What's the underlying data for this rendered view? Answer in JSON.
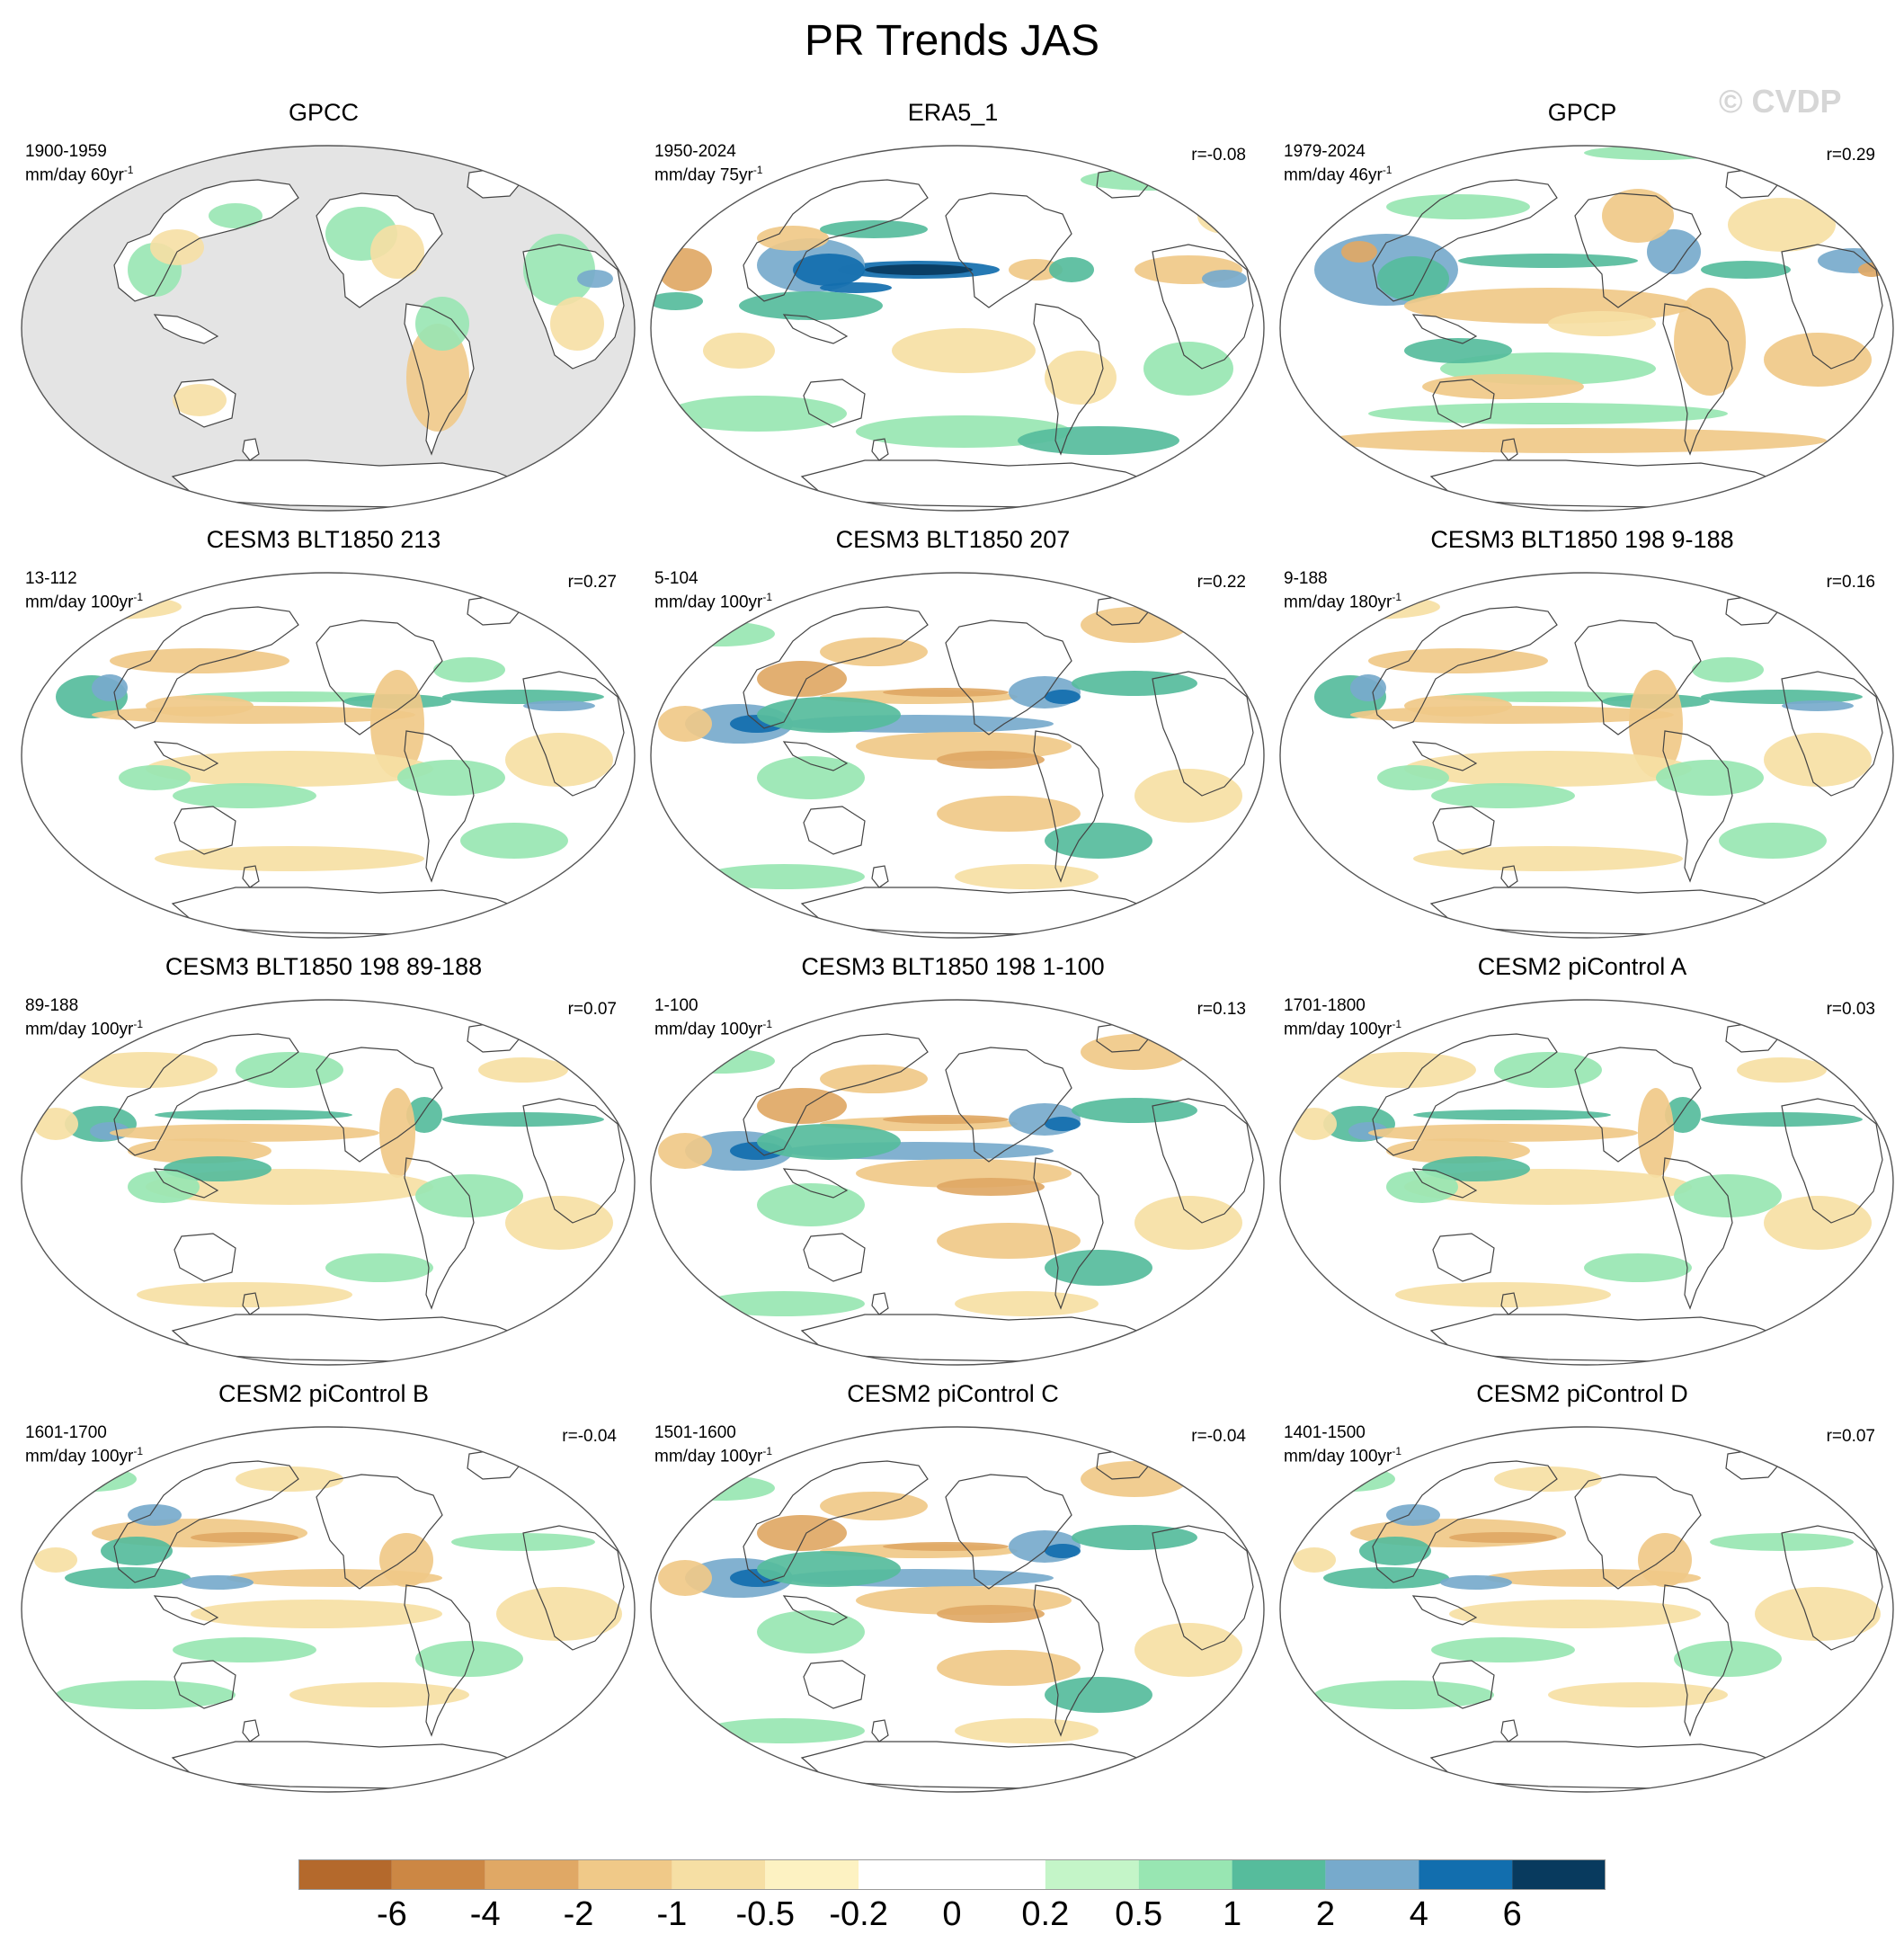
{
  "title": "PR Trends JAS",
  "watermark": "© CVDP",
  "panels": [
    {
      "title": "GPCC",
      "years": "1900-1959",
      "units": "mm/day 60yr",
      "corr": "",
      "pattern": "masked"
    },
    {
      "title": "ERA5_1",
      "years": "1950-2024",
      "units": "mm/day 75yr",
      "corr": "r=-0.08",
      "pattern": "era5"
    },
    {
      "title": "GPCP",
      "years": "1979-2024",
      "units": "mm/day 46yr",
      "corr": "r=0.29",
      "pattern": "gpcp"
    },
    {
      "title": "CESM3 BLT1850 213",
      "years": "13-112",
      "units": "mm/day 100yr",
      "corr": "r=0.27",
      "pattern": "modelA"
    },
    {
      "title": "CESM3 BLT1850 207",
      "years": "5-104",
      "units": "mm/day 100yr",
      "corr": "r=0.22",
      "pattern": "modelB"
    },
    {
      "title": "CESM3 BLT1850 198 9-188",
      "years": "9-188",
      "units": "mm/day 180yr",
      "corr": "r=0.16",
      "pattern": "modelA"
    },
    {
      "title": "CESM3 BLT1850 198 89-188",
      "years": "89-188",
      "units": "mm/day 100yr",
      "corr": "r=0.07",
      "pattern": "modelC"
    },
    {
      "title": "CESM3 BLT1850 198 1-100",
      "years": "1-100",
      "units": "mm/day 100yr",
      "corr": "r=0.13",
      "pattern": "modelB"
    },
    {
      "title": "CESM2 piControl A",
      "years": "1701-1800",
      "units": "mm/day 100yr",
      "corr": "r=0.03",
      "pattern": "modelC"
    },
    {
      "title": "CESM2 piControl B",
      "years": "1601-1700",
      "units": "mm/day 100yr",
      "corr": "r=-0.04",
      "pattern": "modelD"
    },
    {
      "title": "CESM2 piControl C",
      "years": "1501-1600",
      "units": "mm/day 100yr",
      "corr": "r=-0.04",
      "pattern": "modelB"
    },
    {
      "title": "CESM2 piControl D",
      "years": "1401-1500",
      "units": "mm/day 100yr",
      "corr": "r=0.07",
      "pattern": "modelD"
    }
  ],
  "colorbar": {
    "colors": [
      "#b4692c",
      "#cc8744",
      "#e0a865",
      "#f0c988",
      "#f6dfa4",
      "#fdf2c2",
      "#ffffff",
      "#ffffff",
      "#c4f5c8",
      "#98e6b2",
      "#56bc9c",
      "#77aacc",
      "#126eae",
      "#083a5e"
    ],
    "labels": [
      "-6",
      "-4",
      "-2",
      "-1",
      "-0.5",
      "-0.2",
      "0",
      "0.2",
      "0.5",
      "1",
      "2",
      "4",
      "6"
    ]
  }
}
